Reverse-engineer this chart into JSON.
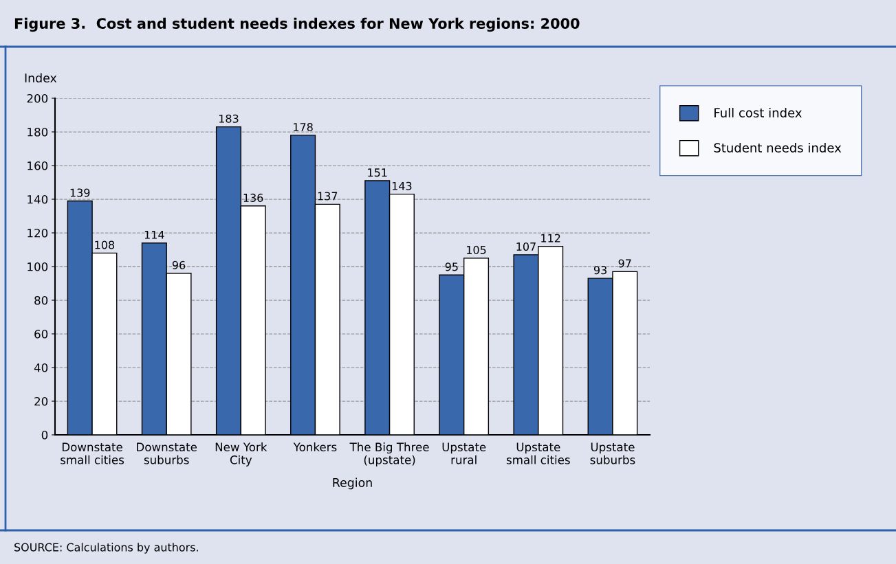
{
  "chart_data": {
    "type": "bar",
    "title": "Figure 3.  Cost and student needs indexes for New York regions: 2000",
    "xlabel": "Region",
    "ylabel": "Index",
    "categories": [
      "Downstate\nsmall cities",
      "Downstate\nsuburbs",
      "New York\nCity",
      "Yonkers",
      "The Big Three\n(upstate)",
      "Upstate\nrural",
      "Upstate\nsmall cities",
      "Upstate\nsuburbs"
    ],
    "series": [
      {
        "name": "Full cost index",
        "color": "#3a68ad",
        "values": [
          139,
          114,
          183,
          178,
          151,
          95,
          107,
          93
        ]
      },
      {
        "name": "Student needs index",
        "color": "#ffffff",
        "values": [
          108,
          96,
          136,
          137,
          143,
          105,
          112,
          97
        ]
      }
    ],
    "ylim": [
      0,
      200
    ],
    "yticks": [
      0,
      20,
      40,
      60,
      80,
      100,
      120,
      140,
      160,
      180,
      200
    ],
    "grid": "y",
    "legend": "right",
    "data_labels": true,
    "annotations": [
      "SOURCE: Calculations by authors."
    ]
  }
}
